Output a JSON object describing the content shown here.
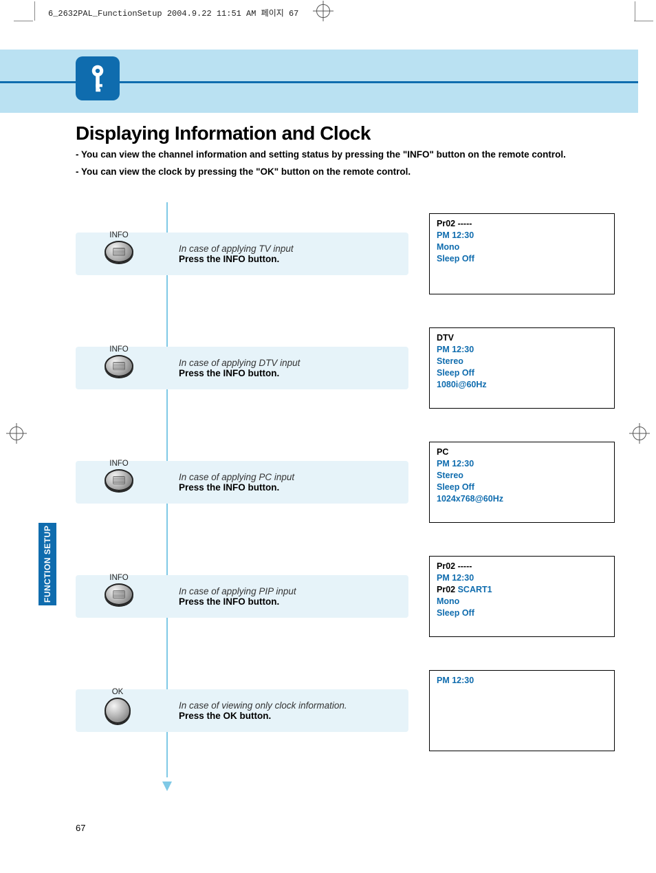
{
  "print_header": "6_2632PAL_FunctionSetup  2004.9.22  11:51 AM  페이지 67",
  "colors": {
    "accent": "#0f6cae",
    "light_band": "#bae1f2",
    "row_bg": "#e6f3f9",
    "arrow": "#7fc9e6",
    "text_blue": "#0f6cae"
  },
  "header": {
    "title": "Displaying Information and Clock",
    "sub1": "- You can view the channel information and setting status by pressing the \"INFO\" button on the remote control.",
    "sub2": "- You can view the clock by pressing the \"OK\" button on the remote control."
  },
  "side_tab": "FUNCTION SETUP",
  "page_number": "67",
  "rows": [
    {
      "button_label": "INFO",
      "button_type": "info",
      "desc_italic": "In case of applying TV input",
      "desc_bold": "Press the INFO button.",
      "display": [
        {
          "type": "black",
          "text": "Pr02  -----"
        },
        {
          "type": "blue",
          "text": "PM 12:30"
        },
        {
          "type": "blue",
          "text": "Mono"
        },
        {
          "type": "blue",
          "text": "Sleep Off"
        }
      ]
    },
    {
      "button_label": "INFO",
      "button_type": "info",
      "desc_italic": "In case of applying DTV input",
      "desc_bold": "Press the INFO button.",
      "display": [
        {
          "type": "black",
          "text": "DTV"
        },
        {
          "type": "blue",
          "text": "PM 12:30"
        },
        {
          "type": "blue",
          "text": "Stereo"
        },
        {
          "type": "blue",
          "text": "Sleep Off"
        },
        {
          "type": "blue",
          "text": "1080i@60Hz"
        }
      ]
    },
    {
      "button_label": "INFO",
      "button_type": "info",
      "desc_italic": "In case of applying PC input",
      "desc_bold": "Press the INFO button.",
      "display": [
        {
          "type": "black",
          "text": "PC"
        },
        {
          "type": "blue",
          "text": "PM 12:30"
        },
        {
          "type": "blue",
          "text": "Stereo"
        },
        {
          "type": "blue",
          "text": "Sleep Off"
        },
        {
          "type": "blue",
          "text": "1024x768@60Hz"
        }
      ]
    },
    {
      "button_label": "INFO",
      "button_type": "info",
      "desc_italic": "In case of applying PIP input",
      "desc_bold": "Press the INFO button.",
      "display": [
        {
          "type": "black",
          "text": "Pr02  -----"
        },
        {
          "type": "blue",
          "text": "PM 12:30"
        },
        {
          "type": "mix",
          "black": "Pr02  ",
          "blue": "SCART1"
        },
        {
          "type": "blue",
          "text": "Mono"
        },
        {
          "type": "blue",
          "text": "Sleep Off"
        }
      ]
    },
    {
      "button_label": "OK",
      "button_type": "ok",
      "desc_italic": "In case of viewing only clock information.",
      "desc_bold": "Press the OK button.",
      "display": [
        {
          "type": "blue",
          "text": "PM 12:30"
        }
      ]
    }
  ]
}
